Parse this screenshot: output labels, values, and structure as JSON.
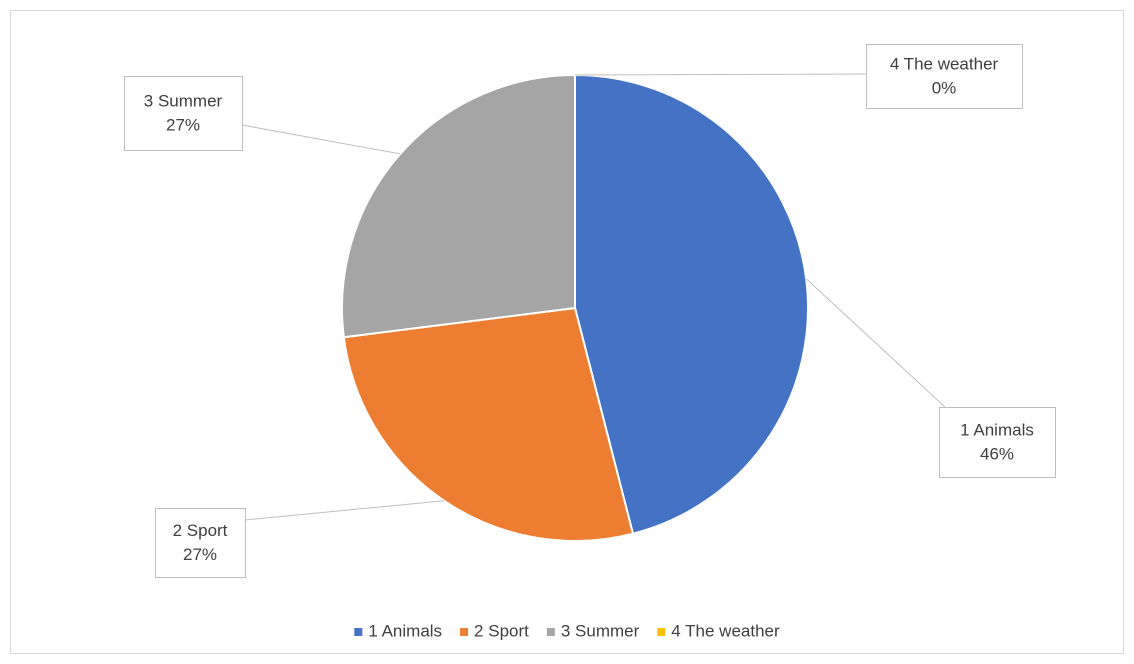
{
  "chart_data": {
    "type": "pie",
    "categories": [
      "1 Animals",
      "2 Sport",
      "3 Summer",
      "4 The weather"
    ],
    "values": [
      46,
      27,
      27,
      0
    ],
    "value_labels": [
      "46%",
      "27%",
      "27%",
      "0%"
    ],
    "colors": [
      "#4472c4",
      "#ed7d31",
      "#a5a5a5",
      "#ffc000"
    ],
    "legend": "bottom"
  }
}
